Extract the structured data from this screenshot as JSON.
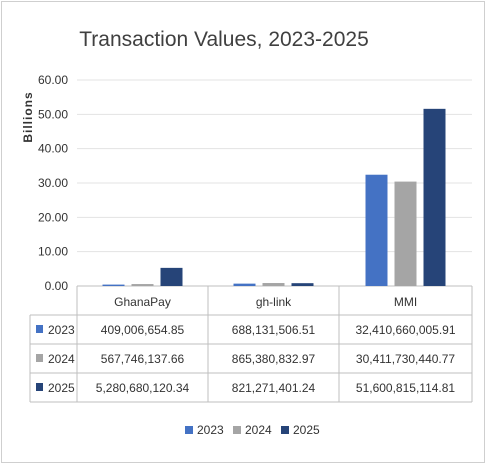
{
  "chart_data": {
    "type": "bar",
    "title": "Transaction Values, 2023-2025",
    "ylabel": "Billions",
    "xlabel": "",
    "ylim": [
      0,
      60
    ],
    "yticks": [
      "0.00",
      "10.00",
      "20.00",
      "30.00",
      "40.00",
      "50.00",
      "60.00"
    ],
    "ytick_values": [
      0,
      10,
      20,
      30,
      40,
      50,
      60
    ],
    "categories": [
      "GhanaPay",
      "gh-link",
      "MMI"
    ],
    "grid": true,
    "legend_position": "bottom",
    "series": [
      {
        "name": "2023",
        "color": "#4472C4",
        "values": [
          0.40900665485,
          0.68813150651,
          32.41066000591
        ],
        "labels": [
          "409,006,654.85",
          "688,131,506.51",
          "32,410,660,005.91"
        ]
      },
      {
        "name": "2024",
        "color": "#A5A5A5",
        "values": [
          0.56774613766,
          0.86538083297,
          30.41173044077
        ],
        "labels": [
          "567,746,137.66",
          "865,380,832.97",
          "30,411,730,440.77"
        ]
      },
      {
        "name": "2025",
        "color": "#264478",
        "values": [
          5.28068012034,
          0.82127140124,
          51.60081511481
        ],
        "labels": [
          "5,280,680,120.34",
          "821,271,401.24",
          "51,600,815,114.81"
        ]
      }
    ]
  }
}
